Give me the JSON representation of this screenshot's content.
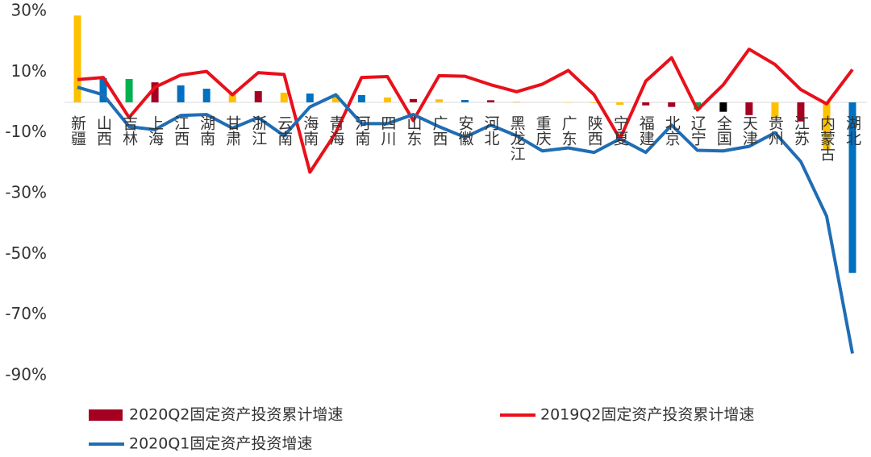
{
  "chart_data": {
    "type": "bar",
    "categories": [
      "新疆",
      "山西",
      "吉林",
      "上海",
      "江西",
      "湖南",
      "甘肃",
      "浙江",
      "云南",
      "海南",
      "青海",
      "河南",
      "四川",
      "山东",
      "广西",
      "安徽",
      "河北",
      "黑龙江",
      "重庆",
      "广东",
      "陕西",
      "宁夏",
      "福建",
      "北京",
      "辽宁",
      "全国",
      "天津",
      "贵州",
      "江苏",
      "内蒙古",
      "湖北"
    ],
    "series": [
      {
        "name": "2020Q2固定资产投资累计增速",
        "type": "bar",
        "color": "#A50021",
        "colors": [
          "#FFC000",
          "#0070C0",
          "#00B050",
          "#A50021",
          "#0070C0",
          "#0070C0",
          "#FFC000",
          "#A50021",
          "#FFC000",
          "#0070C0",
          "#FFC000",
          "#0070C0",
          "#FFC000",
          "#A50021",
          "#FFC000",
          "#0070C0",
          "#A50021",
          "#FFC000",
          "#FFC000",
          "#FFC000",
          "#FFC000",
          "#FFC000",
          "#A50021",
          "#A50021",
          "#00B050",
          "#000000",
          "#A50021",
          "#FFC000",
          "#A50021",
          "#FFC000",
          "#0070C0"
        ],
        "values": [
          28.6,
          8.0,
          7.7,
          6.6,
          5.6,
          4.5,
          2.9,
          3.7,
          3.2,
          2.9,
          2.5,
          2.4,
          1.6,
          1.1,
          1.0,
          0.8,
          0.7,
          0.2,
          0,
          -0.1,
          -0.2,
          -0.8,
          -1.0,
          -1.5,
          -2.4,
          -3.1,
          -4.2,
          -5.0,
          -6.3,
          -15.4,
          -56.2
        ]
      },
      {
        "name": "2019Q2固定资产投资累计增速",
        "type": "line",
        "color": "#E8101A",
        "values": [
          7.5,
          8.2,
          -5,
          5,
          9,
          10.2,
          2.5,
          9.8,
          9.2,
          -23,
          -10,
          8.2,
          8.5,
          -6,
          8.8,
          8.6,
          5.8,
          3.5,
          6,
          10.5,
          2.5,
          -12,
          7,
          14.7,
          -2.5,
          5.8,
          17.5,
          12.5,
          4.2,
          -0.5,
          10.8
        ]
      },
      {
        "name": "2020Q1固定资产投资增速",
        "type": "line",
        "color": "#1F6DB4",
        "values": [
          5,
          2.5,
          -8,
          -9,
          -4.3,
          -4,
          -8.5,
          -5,
          -11,
          -1.5,
          2.5,
          -7,
          -7,
          -4,
          -8,
          -11.5,
          -7.5,
          -11,
          -16,
          -15,
          -16.5,
          -12,
          -16.5,
          -7.5,
          -15.8,
          -16,
          -14.5,
          -10,
          -19.5,
          -37.5,
          -82.7
        ]
      }
    ],
    "ylim": [
      -90,
      30
    ],
    "yticks": [
      {
        "value": 30,
        "label": "30%"
      },
      {
        "value": 10,
        "label": "10%"
      },
      {
        "value": -10,
        "label": "-10%"
      },
      {
        "value": -30,
        "label": "-30%"
      },
      {
        "value": -50,
        "label": "-50%"
      },
      {
        "value": -70,
        "label": "-70%"
      },
      {
        "value": -90,
        "label": "-90%"
      }
    ],
    "grid": false
  }
}
